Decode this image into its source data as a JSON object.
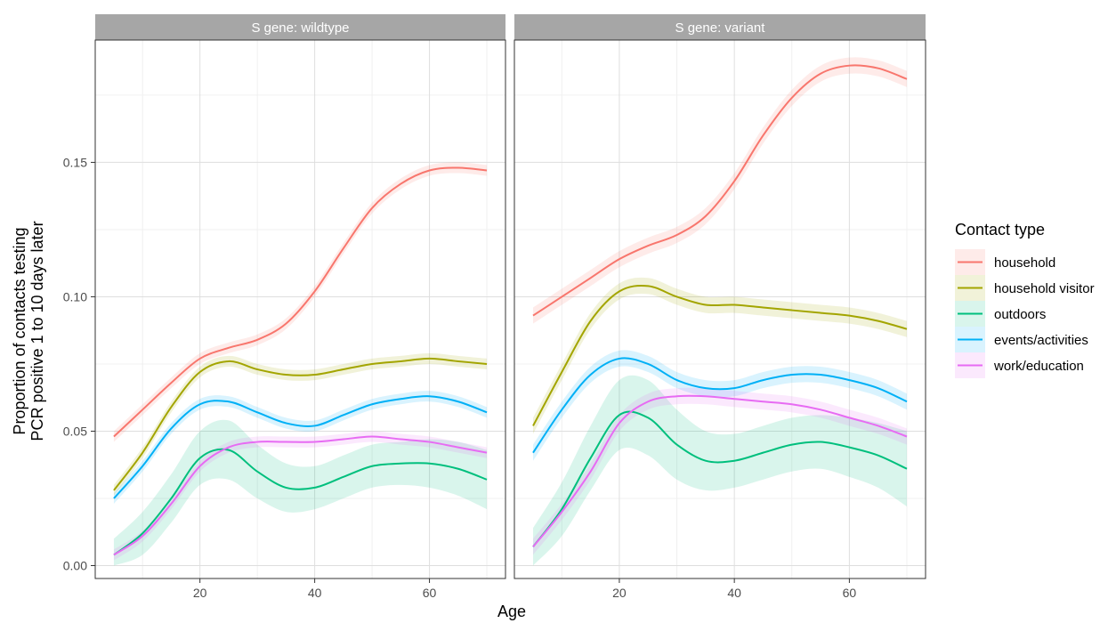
{
  "chart_data": {
    "type": "line",
    "xlabel": "Age",
    "ylabel_line1": "Proportion of contacts testing",
    "ylabel_line2": "PCR positive 1 to 10 days later",
    "xlim": [
      5,
      70
    ],
    "ylim": [
      0,
      0.19
    ],
    "xticks": [
      20,
      40,
      60
    ],
    "xtick_labels": [
      "20",
      "40",
      "60"
    ],
    "yticks": [
      0,
      0.05,
      0.1,
      0.15
    ],
    "ytick_labels": [
      "0.00",
      "0.05",
      "0.10",
      "0.15"
    ],
    "grid": true,
    "legend": {
      "title": "Contact type",
      "placement": "right",
      "entries": [
        "household",
        "household visitor",
        "outdoors",
        "events/activities",
        "work/education"
      ]
    },
    "x": [
      5,
      10,
      15,
      20,
      25,
      30,
      35,
      40,
      45,
      50,
      55,
      60,
      65,
      70
    ],
    "panels": [
      {
        "strip": "S gene: wildtype",
        "series": [
          {
            "name": "household",
            "color": "#F8766D",
            "ribbon": 0.002,
            "values": [
              0.048,
              0.058,
              0.068,
              0.077,
              0.081,
              0.084,
              0.09,
              0.102,
              0.118,
              0.133,
              0.142,
              0.147,
              0.148,
              0.147
            ]
          },
          {
            "name": "household visitor",
            "color": "#A3A500",
            "ribbon": 0.002,
            "values": [
              0.028,
              0.042,
              0.059,
              0.072,
              0.076,
              0.073,
              0.071,
              0.071,
              0.073,
              0.075,
              0.076,
              0.077,
              0.076,
              0.075
            ]
          },
          {
            "name": "outdoors",
            "color": "#00BF7D",
            "ribbon": [
              0.006,
              0.008,
              0.009,
              0.01,
              0.011,
              0.01,
              0.009,
              0.008,
              0.008,
              0.008,
              0.008,
              0.009,
              0.01,
              0.011
            ],
            "values": [
              0.004,
              0.012,
              0.025,
              0.04,
              0.043,
              0.035,
              0.029,
              0.029,
              0.033,
              0.037,
              0.038,
              0.038,
              0.036,
              0.032
            ]
          },
          {
            "name": "events/activities",
            "color": "#00B0F6",
            "ribbon": 0.002,
            "values": [
              0.025,
              0.037,
              0.051,
              0.06,
              0.061,
              0.057,
              0.053,
              0.052,
              0.056,
              0.06,
              0.062,
              0.063,
              0.061,
              0.057
            ]
          },
          {
            "name": "work/education",
            "color": "#E76BF3",
            "ribbon": 0.002,
            "values": [
              0.004,
              0.011,
              0.023,
              0.037,
              0.044,
              0.046,
              0.046,
              0.046,
              0.047,
              0.048,
              0.047,
              0.046,
              0.044,
              0.042
            ]
          }
        ]
      },
      {
        "strip": "S gene: variant",
        "series": [
          {
            "name": "household",
            "color": "#F8766D",
            "ribbon": 0.003,
            "values": [
              0.093,
              0.1,
              0.107,
              0.114,
              0.119,
              0.123,
              0.13,
              0.143,
              0.16,
              0.174,
              0.183,
              0.186,
              0.185,
              0.181
            ]
          },
          {
            "name": "household visitor",
            "color": "#A3A500",
            "ribbon": 0.003,
            "values": [
              0.052,
              0.072,
              0.091,
              0.102,
              0.104,
              0.1,
              0.097,
              0.097,
              0.096,
              0.095,
              0.094,
              0.093,
              0.091,
              0.088
            ]
          },
          {
            "name": "outdoors",
            "color": "#00BF7D",
            "ribbon": [
              0.007,
              0.01,
              0.012,
              0.013,
              0.014,
              0.013,
              0.011,
              0.01,
              0.01,
              0.01,
              0.01,
              0.011,
              0.012,
              0.014
            ],
            "values": [
              0.007,
              0.021,
              0.04,
              0.056,
              0.055,
              0.045,
              0.039,
              0.039,
              0.042,
              0.045,
              0.046,
              0.044,
              0.041,
              0.036
            ]
          },
          {
            "name": "events/activities",
            "color": "#00B0F6",
            "ribbon": 0.003,
            "values": [
              0.042,
              0.058,
              0.071,
              0.077,
              0.075,
              0.069,
              0.066,
              0.066,
              0.069,
              0.071,
              0.071,
              0.069,
              0.066,
              0.061
            ]
          },
          {
            "name": "work/education",
            "color": "#E76BF3",
            "ribbon": 0.003,
            "values": [
              0.007,
              0.02,
              0.035,
              0.053,
              0.061,
              0.063,
              0.063,
              0.062,
              0.061,
              0.06,
              0.058,
              0.055,
              0.052,
              0.048
            ]
          }
        ]
      }
    ]
  }
}
